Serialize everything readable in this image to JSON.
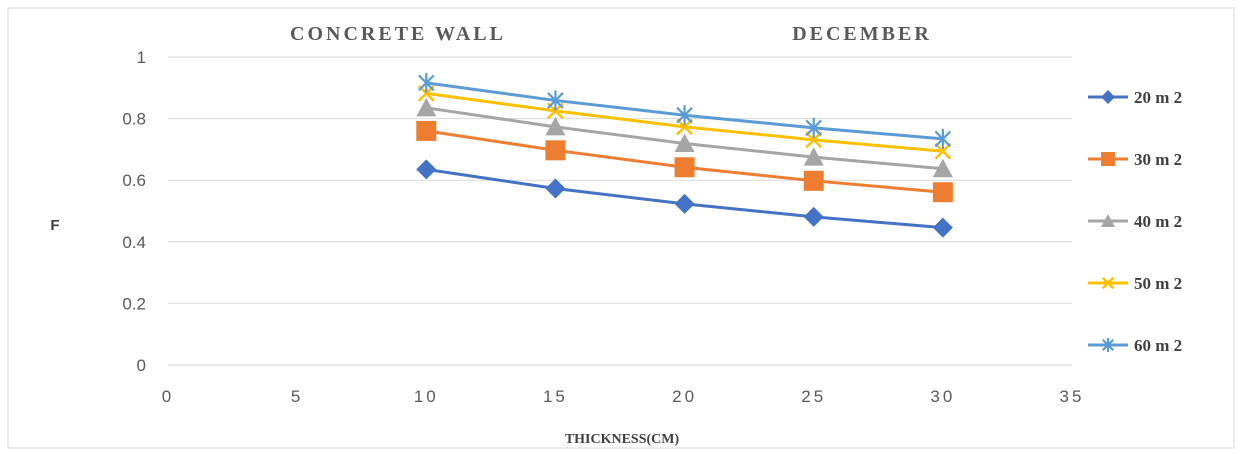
{
  "chart_data": {
    "type": "line",
    "titles": [
      "CONCRETE WALL",
      "DECEMBER"
    ],
    "xlabel": "THICKNESS(CM)",
    "ylabel": "F",
    "xlim": [
      0,
      35
    ],
    "ylim": [
      0,
      1
    ],
    "xticks": [
      "0",
      "5",
      "10",
      "15",
      "20",
      "25",
      "30",
      "35"
    ],
    "yticks": [
      "0",
      "0.2",
      "0.4",
      "0.6",
      "0.8",
      "1"
    ],
    "grid": "horizontal",
    "legend_position": "right",
    "x": [
      10,
      15,
      20,
      25,
      30
    ],
    "series": [
      {
        "name": "20 m 2",
        "values": [
          0.635,
          0.573,
          0.523,
          0.481,
          0.446
        ],
        "color": "#4472C4",
        "marker": "diamond"
      },
      {
        "name": "30 m 2",
        "values": [
          0.76,
          0.697,
          0.642,
          0.598,
          0.561
        ],
        "color": "#ED7D31",
        "marker": "square"
      },
      {
        "name": "40 m 2",
        "values": [
          0.835,
          0.773,
          0.719,
          0.675,
          0.637
        ],
        "color": "#A5A5A5",
        "marker": "triangle"
      },
      {
        "name": "50 m 2",
        "values": [
          0.882,
          0.825,
          0.773,
          0.731,
          0.694
        ],
        "color": "#FFC000",
        "marker": "x"
      },
      {
        "name": "60 m 2",
        "values": [
          0.916,
          0.859,
          0.811,
          0.77,
          0.734
        ],
        "color": "#5B9BD5",
        "marker": "star"
      }
    ]
  }
}
